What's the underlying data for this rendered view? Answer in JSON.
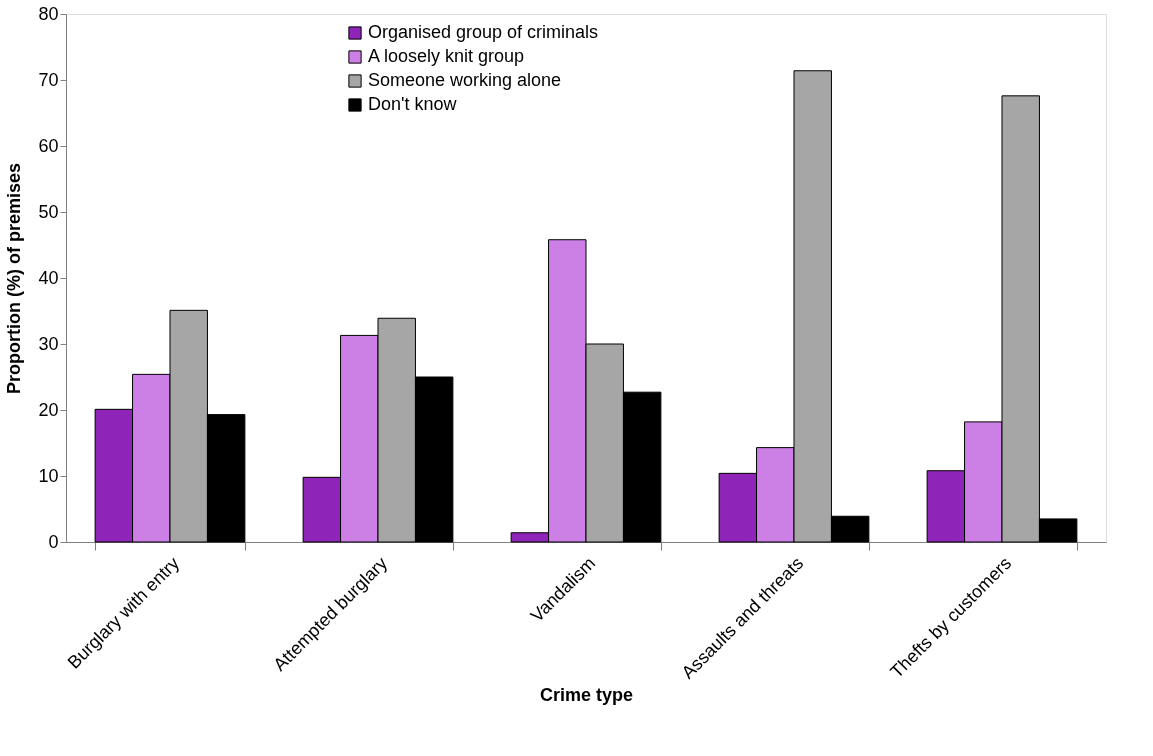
{
  "chart_data": {
    "type": "bar",
    "xlabel": "Crime type",
    "ylabel": "Proportion (%) of premises",
    "categories": [
      "Burglary with entry",
      "Attempted burglary",
      "Vandalism",
      "Assaults and threats",
      "Thefts by customers"
    ],
    "series": [
      {
        "name": "Organised group of criminals",
        "color": "#8e24b8",
        "values": [
          20.1,
          9.8,
          1.4,
          10.4,
          10.8
        ]
      },
      {
        "name": "A loosely knit group",
        "color": "#cc80e6",
        "values": [
          25.4,
          31.3,
          45.8,
          14.3,
          18.2
        ]
      },
      {
        "name": "Someone working alone",
        "color": "#a6a6a6",
        "values": [
          35.1,
          33.9,
          30.0,
          71.4,
          67.6
        ]
      },
      {
        "name": "Don't know",
        "color": "#000000",
        "values": [
          19.3,
          25.0,
          22.7,
          3.9,
          3.5
        ]
      }
    ],
    "ylim": [
      0,
      80
    ],
    "yticks": [
      0,
      10,
      20,
      30,
      40,
      50,
      60,
      70,
      80
    ],
    "grid": false,
    "legend": "top"
  }
}
